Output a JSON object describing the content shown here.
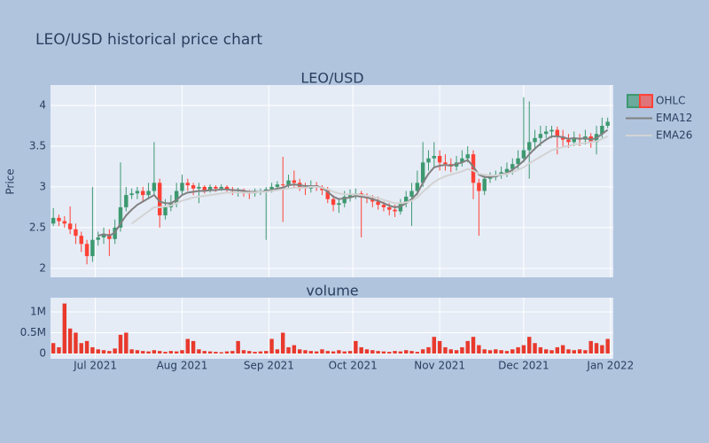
{
  "chart_data": {
    "type": "candlestick",
    "title": "LEO/USD historical price chart",
    "x": [
      "2021-06-16",
      "2021-06-18",
      "2021-06-20",
      "2021-06-22",
      "2021-06-24",
      "2021-06-26",
      "2021-06-28",
      "2021-06-30",
      "2021-07-02",
      "2021-07-04",
      "2021-07-06",
      "2021-07-08",
      "2021-07-10",
      "2021-07-12",
      "2021-07-14",
      "2021-07-16",
      "2021-07-18",
      "2021-07-20",
      "2021-07-22",
      "2021-07-24",
      "2021-07-26",
      "2021-07-28",
      "2021-07-30",
      "2021-08-01",
      "2021-08-03",
      "2021-08-05",
      "2021-08-07",
      "2021-08-09",
      "2021-08-11",
      "2021-08-13",
      "2021-08-15",
      "2021-08-17",
      "2021-08-19",
      "2021-08-21",
      "2021-08-23",
      "2021-08-25",
      "2021-08-27",
      "2021-08-29",
      "2021-08-31",
      "2021-09-02",
      "2021-09-04",
      "2021-09-06",
      "2021-09-08",
      "2021-09-10",
      "2021-09-12",
      "2021-09-14",
      "2021-09-16",
      "2021-09-18",
      "2021-09-20",
      "2021-09-22",
      "2021-09-24",
      "2021-09-26",
      "2021-09-28",
      "2021-09-30",
      "2021-10-02",
      "2021-10-04",
      "2021-10-06",
      "2021-10-08",
      "2021-10-10",
      "2021-10-12",
      "2021-10-14",
      "2021-10-16",
      "2021-10-18",
      "2021-10-20",
      "2021-10-22",
      "2021-10-24",
      "2021-10-26",
      "2021-10-28",
      "2021-10-30",
      "2021-11-01",
      "2021-11-03",
      "2021-11-05",
      "2021-11-07",
      "2021-11-09",
      "2021-11-11",
      "2021-11-13",
      "2021-11-15",
      "2021-11-17",
      "2021-11-19",
      "2021-11-21",
      "2021-11-23",
      "2021-11-25",
      "2021-11-27",
      "2021-11-29",
      "2021-12-01",
      "2021-12-03",
      "2021-12-05",
      "2021-12-07",
      "2021-12-09",
      "2021-12-11",
      "2021-12-13",
      "2021-12-15",
      "2021-12-17",
      "2021-12-19",
      "2021-12-21",
      "2021-12-23",
      "2021-12-25",
      "2021-12-27",
      "2021-12-29",
      "2021-12-31"
    ],
    "xlim": [
      "2021-06-15",
      "2022-01-02"
    ],
    "xticks": [
      {
        "value": "2021-07-01",
        "label": "Jul 2021"
      },
      {
        "value": "2021-08-01",
        "label": "Aug 2021"
      },
      {
        "value": "2021-09-01",
        "label": "Sep 2021"
      },
      {
        "value": "2021-10-01",
        "label": "Oct 2021"
      },
      {
        "value": "2021-11-01",
        "label": "Nov 2021"
      },
      {
        "value": "2021-12-01",
        "label": "Dec 2021"
      },
      {
        "value": "2022-01-01",
        "label": "Jan 2022"
      }
    ],
    "grid": true,
    "panels": [
      {
        "title": "LEO/USD",
        "ylabel": "Price",
        "ylim": [
          1.89,
          4.25
        ],
        "yticks": [
          2,
          2.5,
          3,
          3.5,
          4
        ],
        "series": [
          {
            "name": "OHLC",
            "type": "candlestick",
            "increasing_color": "#3d9970",
            "decreasing_color": "#ff4136",
            "open": [
              2.55,
              2.62,
              2.58,
              2.55,
              2.48,
              2.4,
              2.3,
              2.15,
              2.35,
              2.38,
              2.42,
              2.36,
              2.5,
              2.75,
              2.9,
              2.92,
              2.95,
              2.9,
              2.95,
              3.05,
              2.65,
              2.75,
              2.8,
              2.95,
              3.05,
              3.02,
              2.98,
              3.0,
              2.96,
              3.0,
              2.98,
              3.0,
              2.97,
              2.95,
              2.96,
              2.93,
              2.92,
              2.94,
              2.95,
              2.97,
              3.0,
              3.03,
              3.02,
              3.08,
              3.05,
              3.0,
              2.98,
              3.02,
              3.0,
              2.96,
              2.85,
              2.78,
              2.8,
              2.88,
              2.9,
              2.92,
              2.88,
              2.86,
              2.82,
              2.78,
              2.75,
              2.72,
              2.7,
              2.8,
              2.88,
              2.95,
              3.05,
              3.3,
              3.35,
              3.38,
              3.3,
              3.28,
              3.25,
              3.3,
              3.35,
              3.4,
              3.05,
              2.95,
              3.1,
              3.12,
              3.15,
              3.18,
              3.22,
              3.28,
              3.35,
              3.45,
              3.55,
              3.6,
              3.65,
              3.68,
              3.7,
              3.62,
              3.58,
              3.55,
              3.6,
              3.58,
              3.62,
              3.55,
              3.65,
              3.75
            ],
            "high": [
              2.74,
              2.66,
              2.64,
              2.76,
              2.55,
              2.45,
              2.35,
              3.0,
              2.45,
              2.5,
              2.48,
              2.6,
              3.3,
              3.0,
              2.98,
              3.0,
              3.0,
              3.05,
              3.55,
              3.1,
              2.85,
              2.9,
              3.05,
              3.15,
              3.1,
              3.05,
              3.05,
              3.02,
              3.03,
              3.02,
              3.03,
              3.02,
              3.0,
              2.99,
              2.98,
              2.96,
              2.98,
              2.98,
              3.0,
              3.05,
              3.07,
              3.37,
              3.15,
              3.2,
              3.1,
              3.05,
              3.08,
              3.06,
              3.02,
              3.0,
              2.9,
              2.85,
              2.95,
              2.97,
              2.98,
              2.95,
              2.92,
              2.9,
              2.88,
              2.82,
              2.8,
              2.78,
              2.85,
              2.95,
              3.05,
              3.2,
              3.55,
              3.45,
              3.55,
              3.45,
              3.4,
              3.35,
              3.38,
              3.45,
              3.5,
              3.45,
              3.1,
              3.15,
              3.18,
              3.2,
              3.25,
              3.3,
              3.35,
              3.45,
              4.1,
              4.05,
              3.7,
              3.75,
              3.75,
              3.75,
              3.74,
              3.7,
              3.65,
              3.68,
              3.65,
              3.7,
              3.66,
              3.75,
              3.85,
              3.85
            ],
            "low": [
              2.52,
              2.52,
              2.5,
              2.42,
              2.3,
              2.2,
              2.05,
              2.08,
              2.28,
              2.3,
              2.15,
              2.3,
              2.45,
              2.7,
              2.85,
              2.85,
              2.82,
              2.85,
              2.9,
              2.5,
              2.6,
              2.7,
              2.75,
              2.9,
              2.95,
              2.9,
              2.8,
              2.92,
              2.93,
              2.94,
              2.95,
              2.93,
              2.9,
              2.88,
              2.88,
              2.85,
              2.88,
              2.9,
              2.35,
              2.93,
              2.95,
              2.57,
              2.98,
              3.0,
              2.95,
              2.9,
              2.93,
              2.95,
              2.9,
              2.8,
              2.7,
              2.68,
              2.75,
              2.82,
              2.85,
              2.38,
              2.8,
              2.75,
              2.72,
              2.7,
              2.65,
              2.63,
              2.66,
              2.75,
              2.52,
              2.9,
              3.0,
              3.2,
              3.25,
              3.2,
              3.2,
              3.18,
              3.2,
              3.25,
              3.3,
              2.85,
              2.4,
              2.9,
              3.05,
              3.08,
              3.1,
              3.12,
              3.15,
              3.2,
              3.3,
              3.1,
              3.45,
              3.5,
              3.6,
              3.6,
              3.4,
              3.5,
              3.48,
              3.5,
              3.5,
              3.52,
              3.48,
              3.4,
              3.6,
              3.72
            ],
            "close": [
              2.62,
              2.58,
              2.55,
              2.48,
              2.4,
              2.3,
              2.15,
              2.35,
              2.38,
              2.42,
              2.36,
              2.5,
              2.75,
              2.9,
              2.92,
              2.95,
              2.9,
              2.95,
              3.05,
              2.65,
              2.75,
              2.8,
              2.95,
              3.05,
              3.02,
              2.98,
              3.0,
              2.96,
              3.0,
              2.98,
              3.0,
              2.97,
              2.95,
              2.96,
              2.93,
              2.92,
              2.94,
              2.95,
              2.97,
              3.0,
              3.03,
              3.02,
              3.08,
              3.05,
              3.0,
              2.98,
              3.02,
              3.0,
              2.96,
              2.85,
              2.78,
              2.8,
              2.88,
              2.9,
              2.92,
              2.88,
              2.86,
              2.82,
              2.78,
              2.75,
              2.72,
              2.7,
              2.8,
              2.88,
              2.95,
              3.05,
              3.3,
              3.35,
              3.38,
              3.3,
              3.28,
              3.25,
              3.3,
              3.35,
              3.4,
              3.05,
              2.95,
              3.1,
              3.12,
              3.15,
              3.18,
              3.22,
              3.28,
              3.35,
              3.45,
              3.55,
              3.6,
              3.65,
              3.68,
              3.7,
              3.62,
              3.58,
              3.55,
              3.6,
              3.58,
              3.62,
              3.55,
              3.65,
              3.75,
              3.8
            ]
          },
          {
            "name": "EMA12",
            "color": "#808080",
            "values": [
              null,
              null,
              null,
              null,
              null,
              null,
              null,
              null,
              2.4,
              2.42,
              2.4,
              2.44,
              2.55,
              2.65,
              2.72,
              2.78,
              2.82,
              2.86,
              2.9,
              2.82,
              2.8,
              2.8,
              2.84,
              2.9,
              2.93,
              2.94,
              2.95,
              2.95,
              2.96,
              2.96,
              2.97,
              2.97,
              2.96,
              2.96,
              2.95,
              2.94,
              2.94,
              2.94,
              2.95,
              2.96,
              2.98,
              2.99,
              3.02,
              3.03,
              3.02,
              3.01,
              3.01,
              3.01,
              2.99,
              2.94,
              2.88,
              2.85,
              2.86,
              2.87,
              2.89,
              2.88,
              2.87,
              2.85,
              2.83,
              2.8,
              2.77,
              2.75,
              2.76,
              2.8,
              2.85,
              2.92,
              3.05,
              3.16,
              3.24,
              3.26,
              3.27,
              3.26,
              3.28,
              3.3,
              3.33,
              3.25,
              3.15,
              3.12,
              3.12,
              3.13,
              3.15,
              3.17,
              3.21,
              3.26,
              3.32,
              3.4,
              3.47,
              3.53,
              3.58,
              3.62,
              3.62,
              3.61,
              3.59,
              3.6,
              3.59,
              3.6,
              3.58,
              3.6,
              3.65,
              3.7
            ]
          },
          {
            "name": "EMA26",
            "color": "#d3d3d3",
            "values": [
              null,
              null,
              null,
              null,
              null,
              null,
              null,
              null,
              null,
              null,
              null,
              null,
              null,
              null,
              2.55,
              2.6,
              2.65,
              2.7,
              2.75,
              2.75,
              2.76,
              2.77,
              2.8,
              2.83,
              2.85,
              2.87,
              2.88,
              2.89,
              2.9,
              2.91,
              2.92,
              2.93,
              2.93,
              2.93,
              2.93,
              2.93,
              2.93,
              2.94,
              2.94,
              2.95,
              2.96,
              2.97,
              2.98,
              2.99,
              2.99,
              2.99,
              3.0,
              3.0,
              2.99,
              2.97,
              2.94,
              2.92,
              2.91,
              2.91,
              2.91,
              2.9,
              2.89,
              2.88,
              2.86,
              2.84,
              2.82,
              2.8,
              2.8,
              2.81,
              2.83,
              2.87,
              2.94,
              3.0,
              3.06,
              3.1,
              3.13,
              3.15,
              3.17,
              3.19,
              3.22,
              3.2,
              3.16,
              3.15,
              3.14,
              3.14,
              3.15,
              3.16,
              3.18,
              3.21,
              3.24,
              3.29,
              3.33,
              3.37,
              3.41,
              3.45,
              3.47,
              3.49,
              3.5,
              3.52,
              3.53,
              3.54,
              3.55,
              3.56,
              3.59,
              3.62
            ]
          }
        ]
      },
      {
        "title": "volume",
        "ylim": [
          -128000,
          1340000
        ],
        "yticks": [
          0,
          {
            "value": 500000,
            "label": "0.5M"
          },
          {
            "value": 1000000,
            "label": "1M"
          }
        ],
        "series": [
          {
            "type": "bar",
            "color": "#e8392c",
            "values": [
              250000,
              150000,
              1200000,
              600000,
              500000,
              250000,
              300000,
              150000,
              100000,
              80000,
              60000,
              120000,
              450000,
              500000,
              100000,
              80000,
              60000,
              50000,
              80000,
              60000,
              40000,
              60000,
              50000,
              80000,
              350000,
              300000,
              100000,
              60000,
              50000,
              40000,
              30000,
              50000,
              60000,
              300000,
              80000,
              60000,
              40000,
              50000,
              60000,
              350000,
              100000,
              500000,
              150000,
              200000,
              100000,
              80000,
              60000,
              50000,
              100000,
              60000,
              50000,
              80000,
              50000,
              60000,
              300000,
              150000,
              100000,
              80000,
              60000,
              50000,
              40000,
              60000,
              50000,
              80000,
              60000,
              40000,
              100000,
              150000,
              400000,
              300000,
              150000,
              100000,
              80000,
              150000,
              300000,
              400000,
              200000,
              100000,
              80000,
              100000,
              80000,
              60000,
              100000,
              150000,
              200000,
              400000,
              250000,
              150000,
              100000,
              80000,
              150000,
              200000,
              100000,
              80000,
              100000,
              80000,
              300000,
              250000,
              200000,
              350000
            ]
          }
        ]
      }
    ]
  }
}
